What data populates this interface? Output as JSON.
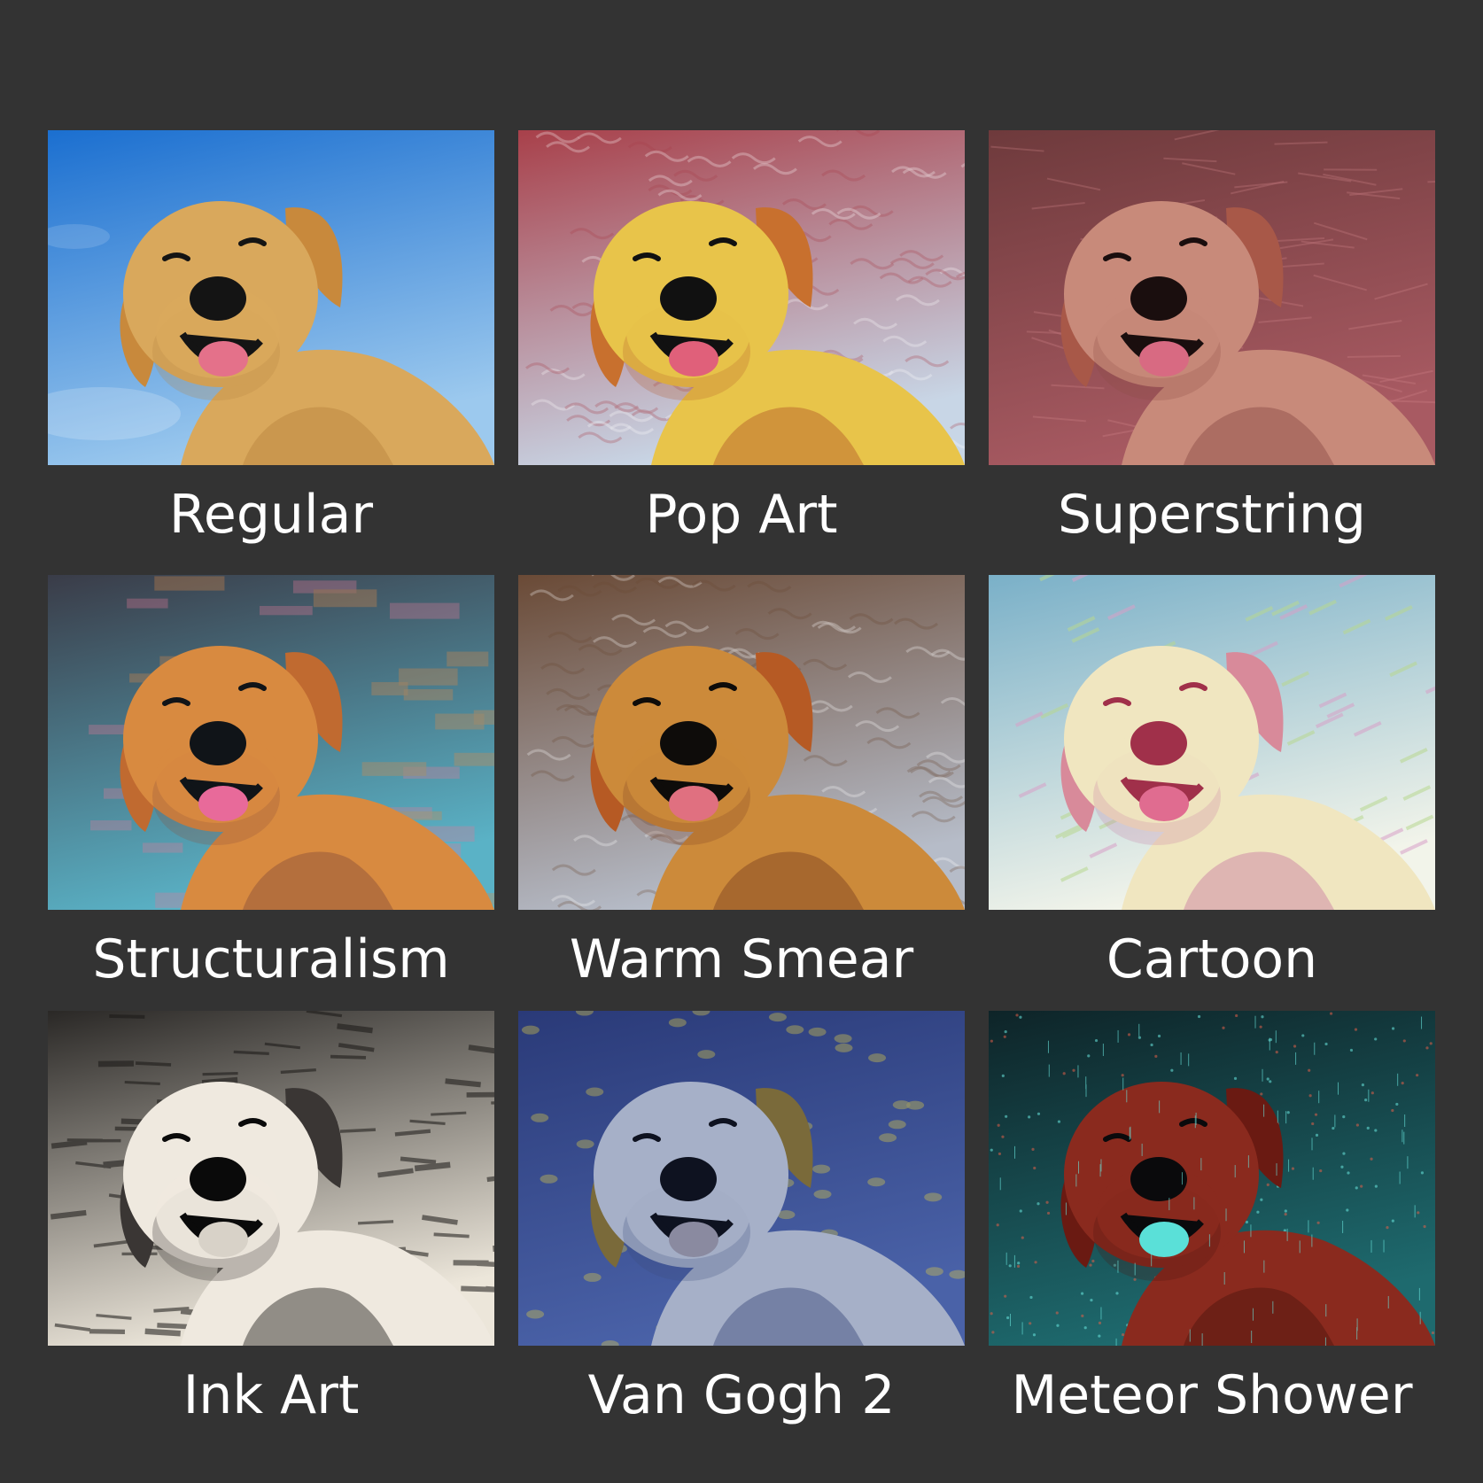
{
  "styles": [
    {
      "label": "Regular",
      "bg_top": "#1b6fd0",
      "bg_bottom": "#9cc9ee",
      "dog": "#d9a85c",
      "dog_dark": "#b9823f",
      "ear": "#c8893c",
      "nose": "#141414",
      "tongue": "#e4718a",
      "texture": "none"
    },
    {
      "label": "Pop Art",
      "bg_top": "#a8404a",
      "bg_bottom": "#c8d6e6",
      "dog": "#e8c44a",
      "dog_dark": "#b45a2a",
      "ear": "#c8702e",
      "nose": "#111111",
      "tongue": "#e0607a",
      "texture": "swirl"
    },
    {
      "label": "Superstring",
      "bg_top": "#6e3a3c",
      "bg_bottom": "#a85a62",
      "dog": "#c88a7a",
      "dog_dark": "#8a4a44",
      "ear": "#a85848",
      "nose": "#1a0e0e",
      "tongue": "#d86a82",
      "texture": "streak"
    },
    {
      "label": "Structuralism",
      "bg_top": "#3a3c48",
      "bg_bottom": "#5ab2c6",
      "dog": "#d88a40",
      "dog_dark": "#8a4e3a",
      "ear": "#c06a30",
      "nose": "#101418",
      "tongue": "#e86a9a",
      "texture": "blocks"
    },
    {
      "label": "Warm Smear",
      "bg_top": "#6a4a36",
      "bg_bottom": "#b6bcc8",
      "dog": "#cc8a3a",
      "dog_dark": "#7a3e22",
      "ear": "#b65a24",
      "nose": "#0e0c0a",
      "tongue": "#e07080",
      "texture": "smear"
    },
    {
      "label": "Cartoon",
      "bg_top": "#7ab0c8",
      "bg_bottom": "#f2f4ea",
      "dog": "#f0e6c0",
      "dog_dark": "#c87aa2",
      "ear": "#d88a9a",
      "nose": "#a0304a",
      "tongue": "#e06c90",
      "texture": "light"
    },
    {
      "label": "Ink Art",
      "bg_top": "#2a2826",
      "bg_bottom": "#ece6da",
      "dog": "#efe9df",
      "dog_dark": "#1e1c1a",
      "ear": "#3a3634",
      "nose": "#0a0a0a",
      "tongue": "#d8d2c8",
      "texture": "ink"
    },
    {
      "label": "Van Gogh 2",
      "bg_top": "#2a3a78",
      "bg_bottom": "#4a62a8",
      "dog": "#a6b0c8",
      "dog_dark": "#3a4a7a",
      "ear": "#7a6a3a",
      "nose": "#0e1220",
      "tongue": "#8a8aa0",
      "texture": "stars"
    },
    {
      "label": "Meteor Shower",
      "bg_top": "#0e2428",
      "bg_bottom": "#1e6a6e",
      "dog": "#8a2a1e",
      "dog_dark": "#4a140e",
      "ear": "#6a1a12",
      "nose": "#0a0a0c",
      "tongue": "#5ae0d8",
      "texture": "rain"
    }
  ]
}
